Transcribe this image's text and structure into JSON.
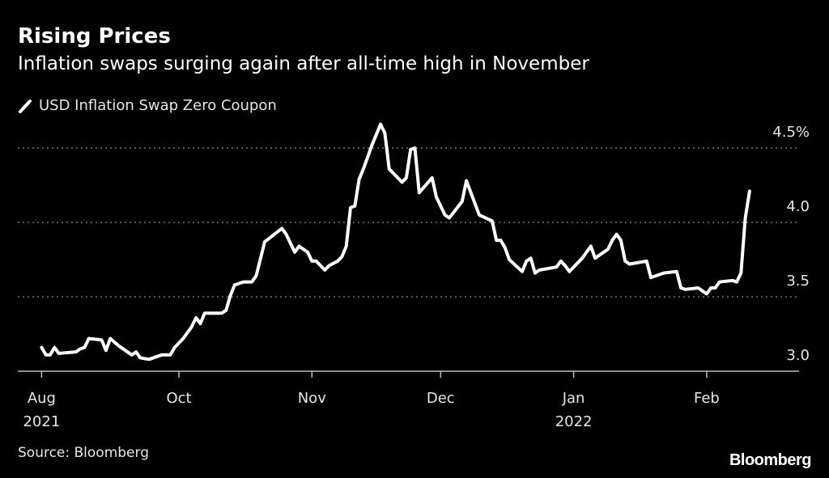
{
  "title": "Rising Prices",
  "subtitle": "Inflation swaps surging again after all-time high in November",
  "source": "Source: Bloomberg",
  "logo": "Bloomberg",
  "colors": {
    "background": "#000000",
    "line": "#ffffff",
    "grid": "#8c8c8c",
    "text": "#e6e6e6"
  },
  "chart_data": {
    "type": "line",
    "title": "Rising Prices",
    "subtitle": "Inflation swaps surging again after all-time high in November",
    "ylim": [
      3.0,
      4.5
    ],
    "grid": true,
    "legend_placement": "top-left",
    "y_axis_side": "right",
    "y_ticks": [
      {
        "value": 3.0,
        "label": "3.0"
      },
      {
        "value": 3.5,
        "label": "3.5"
      },
      {
        "value": 4.0,
        "label": "4.0"
      },
      {
        "value": 4.5,
        "label": "4.5%"
      }
    ],
    "x_ticks": [
      {
        "date": "2021-08-30",
        "label": "Aug",
        "year": "2021"
      },
      {
        "date": "2021-10-01",
        "label": "Oct",
        "year": ""
      },
      {
        "date": "2021-11-01",
        "label": "Nov",
        "year": ""
      },
      {
        "date": "2021-12-01",
        "label": "Dec",
        "year": ""
      },
      {
        "date": "2022-01-01",
        "label": "Jan",
        "year": "2022"
      },
      {
        "date": "2022-02-01",
        "label": "Feb",
        "year": ""
      }
    ],
    "series": [
      {
        "name": "USD Inflation Swap Zero Coupon",
        "color": "#ffffff",
        "x": [
          "2021-08-30",
          "2021-08-31",
          "2021-09-01",
          "2021-09-02",
          "2021-09-03",
          "2021-09-07",
          "2021-09-08",
          "2021-09-09",
          "2021-09-10",
          "2021-09-13",
          "2021-09-14",
          "2021-09-15",
          "2021-09-17",
          "2021-09-20",
          "2021-09-21",
          "2021-09-22",
          "2021-09-24",
          "2021-09-27",
          "2021-09-29",
          "2021-09-30",
          "2021-10-02",
          "2021-10-04",
          "2021-10-05",
          "2021-10-06",
          "2021-10-07",
          "2021-10-11",
          "2021-10-12",
          "2021-10-13",
          "2021-10-14",
          "2021-10-16",
          "2021-10-18",
          "2021-10-19",
          "2021-10-21",
          "2021-10-25",
          "2021-10-26",
          "2021-10-28",
          "2021-10-29",
          "2021-10-31",
          "2021-11-01",
          "2021-11-02",
          "2021-11-03",
          "2021-11-04",
          "2021-11-05",
          "2021-11-07",
          "2021-11-08",
          "2021-11-09",
          "2021-11-10",
          "2021-11-11",
          "2021-11-12",
          "2021-11-13",
          "2021-11-15",
          "2021-11-17",
          "2021-11-18",
          "2021-11-19",
          "2021-11-22",
          "2021-11-23",
          "2021-11-24",
          "2021-11-25",
          "2021-11-26",
          "2021-11-29",
          "2021-11-30",
          "2021-12-02",
          "2021-12-03",
          "2021-12-06",
          "2021-12-07",
          "2021-12-10",
          "2021-12-13",
          "2021-12-14",
          "2021-12-15",
          "2021-12-16",
          "2021-12-17",
          "2021-12-20",
          "2021-12-21",
          "2021-12-22",
          "2021-12-23",
          "2021-12-24",
          "2021-12-28",
          "2021-12-29",
          "2021-12-30",
          "2021-12-31",
          "2022-01-03",
          "2022-01-05",
          "2022-01-06",
          "2022-01-09",
          "2022-01-10",
          "2022-01-11",
          "2022-01-12",
          "2022-01-13",
          "2022-01-14",
          "2022-01-18",
          "2022-01-19",
          "2022-01-22",
          "2022-01-25",
          "2022-01-26",
          "2022-01-27",
          "2022-01-30",
          "2022-02-01",
          "2022-02-02",
          "2022-02-03",
          "2022-02-04",
          "2022-02-07",
          "2022-02-08",
          "2022-02-09",
          "2022-02-10",
          "2022-02-11"
        ],
        "values": [
          3.16,
          3.11,
          3.11,
          3.16,
          3.12,
          3.13,
          3.15,
          3.16,
          3.22,
          3.21,
          3.14,
          3.22,
          3.17,
          3.11,
          3.13,
          3.09,
          3.08,
          3.11,
          3.11,
          3.16,
          3.22,
          3.3,
          3.36,
          3.32,
          3.39,
          3.39,
          3.41,
          3.51,
          3.58,
          3.6,
          3.6,
          3.64,
          3.87,
          3.96,
          3.92,
          3.8,
          3.84,
          3.8,
          3.74,
          3.74,
          3.71,
          3.68,
          3.71,
          3.74,
          3.77,
          3.84,
          4.1,
          4.11,
          4.29,
          4.36,
          4.52,
          4.66,
          4.6,
          4.36,
          4.27,
          4.3,
          4.49,
          4.5,
          4.2,
          4.3,
          4.17,
          4.05,
          4.03,
          4.14,
          4.28,
          4.05,
          4.01,
          3.88,
          3.88,
          3.83,
          3.75,
          3.67,
          3.74,
          3.76,
          3.66,
          3.68,
          3.7,
          3.74,
          3.71,
          3.67,
          3.76,
          3.84,
          3.76,
          3.82,
          3.88,
          3.92,
          3.88,
          3.74,
          3.72,
          3.74,
          3.63,
          3.66,
          3.67,
          3.56,
          3.55,
          3.56,
          3.52,
          3.56,
          3.56,
          3.6,
          3.61,
          3.6,
          3.66,
          4.03,
          4.21
        ]
      }
    ]
  }
}
